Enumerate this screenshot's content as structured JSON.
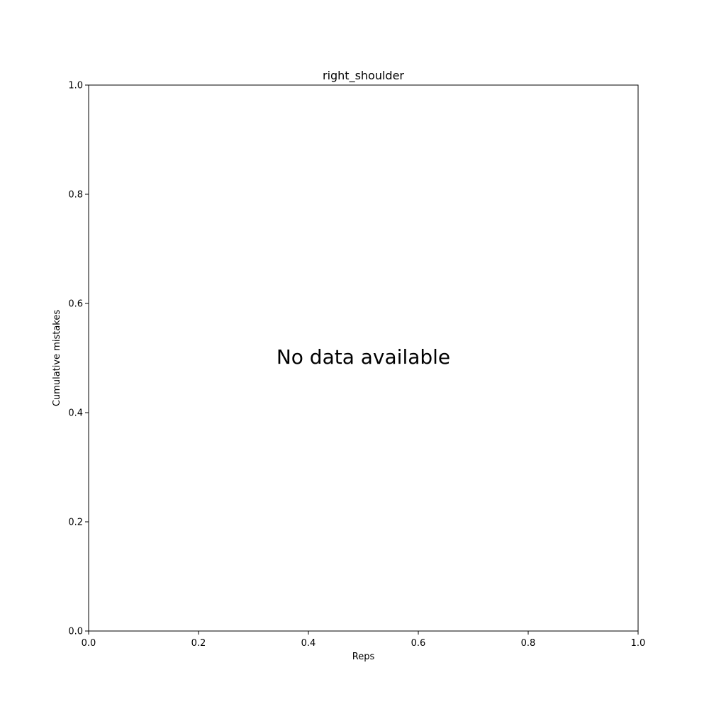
{
  "chart_data": {
    "type": "line",
    "title": "right_shoulder",
    "xlabel": "Reps",
    "ylabel": "Cumulative mistakes",
    "xlim": [
      0.0,
      1.0
    ],
    "ylim": [
      0.0,
      1.0
    ],
    "xticks": [
      "0.0",
      "0.2",
      "0.4",
      "0.6",
      "0.8",
      "1.0"
    ],
    "yticks": [
      "0.0",
      "0.2",
      "0.4",
      "0.6",
      "0.8",
      "1.0"
    ],
    "series": [],
    "annotation": "No data available",
    "grid": false
  }
}
